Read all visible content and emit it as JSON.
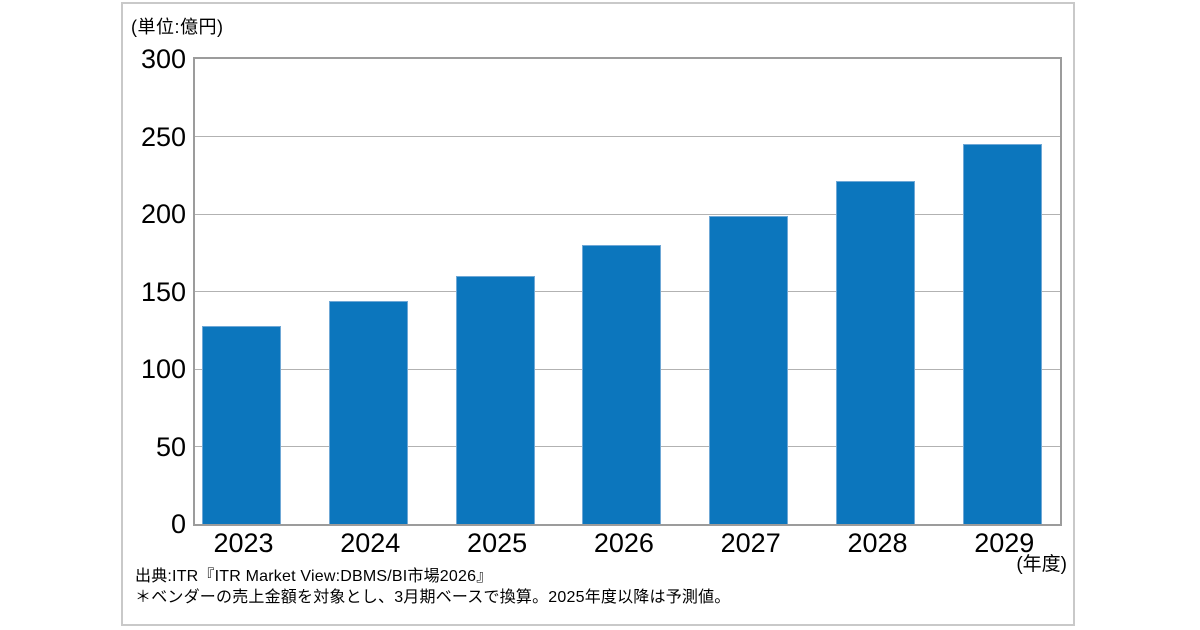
{
  "labels": {
    "unit": "(単位:億円)",
    "x_axis_suffix": "(年度)"
  },
  "source": {
    "line1": "出典:ITR『ITR Market View:DBMS/BI市場2026』",
    "line2": "＊ベンダーの売上金額を対象とし、3月期ベースで換算。2025年度以降は予測値。"
  },
  "chart_data": {
    "type": "bar",
    "title": "",
    "categories": [
      "2023",
      "2024",
      "2025",
      "2026",
      "2027",
      "2028",
      "2029"
    ],
    "values": [
      128,
      144,
      160,
      180,
      199,
      221,
      245
    ],
    "xlabel": "(年度)",
    "ylabel": "(単位:億円)",
    "ylim": [
      0,
      300
    ],
    "yticks": [
      0,
      50,
      100,
      150,
      200,
      250,
      300
    ],
    "grid": true,
    "legend": false,
    "bar_color": "#0c76bd",
    "bar_border_color": "#6fa8d6"
  },
  "colors": {
    "background": "#ffffff",
    "frame_border": "#c9c9c9",
    "plot_border": "#9c9c9c",
    "gridline": "#b2b2b2",
    "text": "#000000"
  }
}
